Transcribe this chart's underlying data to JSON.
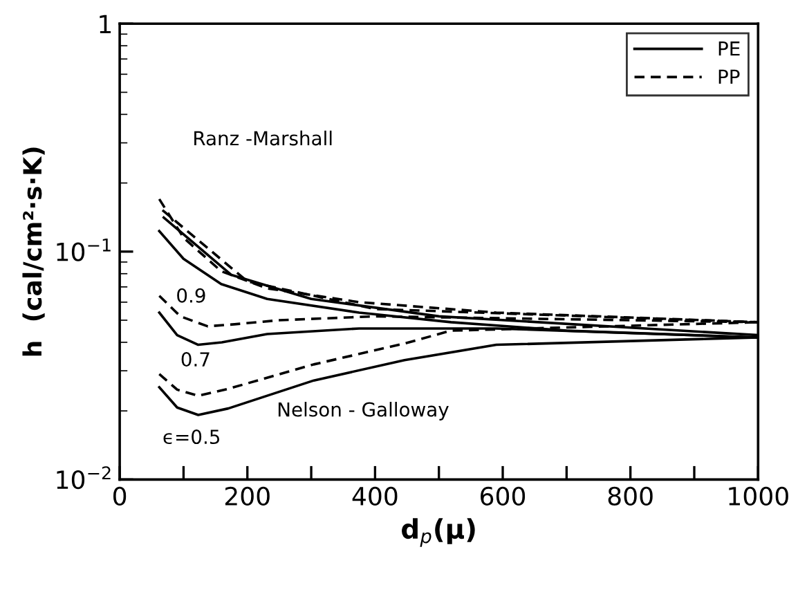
{
  "chart_data": {
    "type": "line",
    "xlabel": "d$_{p}$(μ)",
    "ylabel": "h  (cal/cm²·s·K)",
    "log": "y",
    "xlim": [
      0,
      1000
    ],
    "ylim": [
      0.01,
      1
    ],
    "xticks": [
      0,
      {
        "value": 100,
        "label": null
      },
      200,
      {
        "value": 300,
        "label": null
      },
      400,
      {
        "value": 500,
        "label": null
      },
      600,
      {
        "value": 700,
        "label": null
      },
      800,
      {
        "value": 900,
        "label": null
      },
      1000
    ],
    "yticks": [
      {
        "value": 0.01,
        "label": "10$^{−2}$"
      },
      {
        "value": 0.1,
        "label": "10$^{−1}$"
      },
      1
    ],
    "grid": false,
    "legend": "top right",
    "marker": "none",
    "series": [
      {
        "name": "PE",
        "color": "#000000",
        "line_style": "solid",
        "x": [
          62,
          100,
          159,
          231,
          375,
          519,
          700,
          1000
        ],
        "values": [
          0.123,
          0.093,
          0.072,
          0.062,
          0.054,
          0.049,
          0.045,
          0.042
        ]
      },
      {
        "name": "PP",
        "color": "#000000",
        "line_style": "dashed",
        "x": [
          62,
          100,
          159,
          231,
          375,
          590,
          1000
        ],
        "values": [
          0.17,
          0.115,
          0.082,
          0.069,
          0.06,
          0.054,
          0.049
        ]
      },
      {
        "color": "#000000",
        "line_style": "solid",
        "x": [
          69,
          175,
          300,
          500,
          1000
        ],
        "values": [
          0.141,
          0.079,
          0.062,
          0.052,
          0.043
        ]
      },
      {
        "color": "#000000",
        "line_style": "dashed",
        "x": [
          67,
          200,
          400,
          1000
        ],
        "values": [
          0.152,
          0.074,
          0.056,
          0.049
        ]
      },
      {
        "color": "#000000",
        "line_style": "solid",
        "x": [
          62,
          90,
          123,
          160,
          231,
          375,
          590,
          1000
        ],
        "values": [
          0.054,
          0.043,
          0.039,
          0.04,
          0.0435,
          0.046,
          0.046,
          0.042
        ]
      },
      {
        "color": "#000000",
        "line_style": "dashed",
        "x": [
          62,
          95,
          138,
          180,
          250,
          400,
          600,
          1000
        ],
        "values": [
          0.064,
          0.052,
          0.047,
          0.048,
          0.05,
          0.052,
          0.051,
          0.049
        ]
      },
      {
        "color": "#000000",
        "line_style": "solid",
        "x": [
          62,
          90,
          123,
          170,
          304,
          446,
          590,
          1000
        ],
        "values": [
          0.0254,
          0.0207,
          0.0192,
          0.0205,
          0.0272,
          0.0334,
          0.039,
          0.042
        ]
      },
      {
        "color": "#000000",
        "line_style": "dashed",
        "x": [
          62,
          90,
          123,
          170,
          304,
          446,
          519,
          1000
        ],
        "values": [
          0.029,
          0.0248,
          0.0233,
          0.025,
          0.032,
          0.0395,
          0.045,
          0.049
        ]
      }
    ],
    "annotations": [
      "Ranz -Marshall",
      "0.9",
      "0.7",
      "Nelson - Galloway",
      "ϵ=0.5"
    ]
  }
}
